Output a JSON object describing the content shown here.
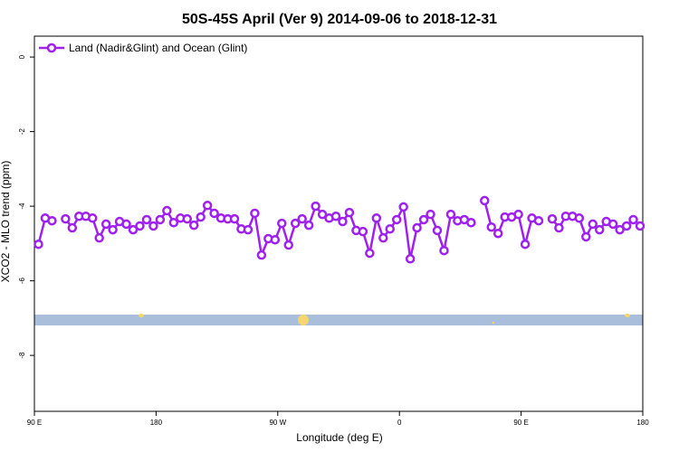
{
  "chart_data": {
    "type": "line",
    "title": "50S-45S April (Ver 9)   2014-09-06 to 2018-12-31",
    "xlabel": "Longitude (deg E)",
    "ylabel": "XCO2 - MLO trend (ppm)",
    "xlim": [
      90,
      540
    ],
    "ylim": [
      -9.5,
      0.56
    ],
    "xticks": [
      {
        "value": 90,
        "label": "90 E"
      },
      180,
      {
        "value": 270,
        "label": "90 W"
      },
      {
        "value": 360,
        "label": "0"
      },
      {
        "value": 450,
        "label": "90 E"
      },
      {
        "value": 540,
        "label": "180"
      }
    ],
    "yticks": [
      0,
      -2,
      -4,
      -6,
      -8
    ],
    "legend": "upper left",
    "series": [
      {
        "name": "Land (Nadir&Glint) and Ocean (Glint)",
        "color": "#a020f0",
        "x": [
          93,
          98,
          103,
          108,
          113,
          118,
          123,
          128,
          133,
          138,
          143,
          148,
          153,
          158,
          163,
          168,
          173,
          178,
          183,
          188,
          193,
          198,
          203,
          208,
          213,
          218,
          223,
          228,
          233,
          238,
          243,
          248,
          253,
          258,
          263,
          268,
          273,
          278,
          283,
          288,
          293,
          298,
          303,
          308,
          313,
          318,
          323,
          328,
          333,
          338,
          343,
          348,
          353,
          358,
          363,
          368,
          373,
          378,
          383,
          388,
          393,
          398,
          403,
          408,
          413,
          418,
          423,
          428,
          433,
          438,
          443,
          448,
          453,
          458,
          463,
          468,
          473,
          478,
          483,
          488,
          493,
          498,
          503,
          508,
          513,
          518,
          523,
          528,
          533,
          538
        ],
        "values": [
          -5.02,
          -4.32,
          -4.39,
          null,
          -4.34,
          -4.58,
          -4.27,
          -4.27,
          -4.32,
          -4.85,
          -4.48,
          -4.63,
          -4.41,
          -4.48,
          -4.63,
          -4.53,
          -4.36,
          -4.53,
          -4.36,
          -4.12,
          -4.44,
          -4.32,
          -4.34,
          -4.51,
          -4.29,
          -3.98,
          -4.19,
          -4.32,
          -4.34,
          -4.34,
          -4.61,
          -4.63,
          -4.19,
          -5.31,
          -4.87,
          -4.9,
          -4.46,
          -5.04,
          -4.46,
          -4.34,
          -4.51,
          -4.0,
          -4.22,
          -4.32,
          -4.27,
          -4.41,
          -4.17,
          -4.65,
          -4.68,
          -5.26,
          -4.32,
          -4.85,
          -4.61,
          -4.36,
          -4.02,
          -5.41,
          -4.58,
          -4.36,
          -4.22,
          -4.65,
          -5.19,
          -4.22,
          -4.39,
          -4.36,
          -4.44,
          null,
          -3.85,
          -4.56,
          -4.73,
          -4.29,
          -4.29,
          -4.22,
          -5.02,
          -4.32,
          -4.39,
          null,
          -4.34,
          -4.58,
          -4.27,
          -4.27,
          -4.32,
          -4.82,
          -4.48,
          -4.63,
          -4.41,
          -4.48,
          -4.63,
          -4.53,
          -4.36,
          -4.53
        ]
      }
    ]
  }
}
